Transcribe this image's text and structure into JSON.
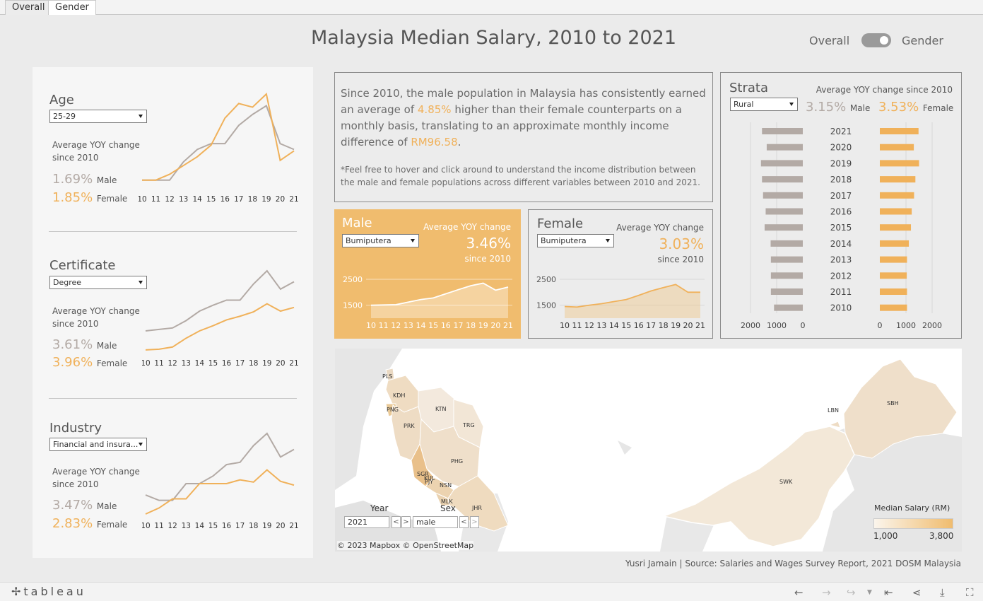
{
  "tabs": [
    {
      "label": "Overall",
      "active": false
    },
    {
      "label": "Gender",
      "active": true
    }
  ],
  "title": "Malaysia Median Salary, 2010 to 2021",
  "toggle": {
    "left": "Overall",
    "right": "Gender"
  },
  "left_sections": [
    {
      "title": "Age",
      "dropdown": "25-29",
      "yoy_label": "Average YOY change since 2010",
      "male_pct": "1.69%",
      "male_label": "Male",
      "female_pct": "1.85%",
      "female_label": "Female",
      "chart_data": {
        "type": "line",
        "x": [
          "10",
          "11",
          "12",
          "13",
          "14",
          "15",
          "16",
          "17",
          "18",
          "19",
          "20",
          "21"
        ],
        "series": [
          {
            "name": "Male",
            "color": "#b3aaa5",
            "values": [
              0.1,
              0.1,
              0.1,
              0.35,
              0.52,
              0.6,
              0.6,
              0.85,
              1.0,
              1.12,
              0.6,
              0.52
            ]
          },
          {
            "name": "Female",
            "color": "#f0b15a",
            "values": [
              0.1,
              0.1,
              0.18,
              0.3,
              0.42,
              0.58,
              0.95,
              1.15,
              1.1,
              1.28,
              0.37,
              0.5
            ]
          }
        ]
      }
    },
    {
      "title": "Certificate",
      "dropdown": "Degree",
      "yoy_label": "Average YOY change since 2010",
      "male_pct": "3.61%",
      "male_label": "Male",
      "female_pct": "3.96%",
      "female_label": "Female",
      "chart_data": {
        "type": "line",
        "x": [
          "10",
          "11",
          "12",
          "13",
          "14",
          "15",
          "16",
          "17",
          "18",
          "19",
          "20",
          "21"
        ],
        "series": [
          {
            "name": "Male",
            "color": "#b3aaa5",
            "values": [
              0.28,
              0.3,
              0.32,
              0.42,
              0.55,
              0.63,
              0.7,
              0.7,
              0.92,
              1.1,
              0.85,
              0.95
            ]
          },
          {
            "name": "Female",
            "color": "#f0b15a",
            "values": [
              0.02,
              0.03,
              0.06,
              0.18,
              0.28,
              0.35,
              0.43,
              0.48,
              0.54,
              0.65,
              0.55,
              0.6
            ]
          }
        ]
      }
    },
    {
      "title": "Industry",
      "dropdown": "Financial and insura...",
      "yoy_label": "Average YOY change since 2010",
      "male_pct": "3.47%",
      "male_label": "Male",
      "female_pct": "2.83%",
      "female_label": "Female",
      "chart_data": {
        "type": "line",
        "x": [
          "10",
          "11",
          "12",
          "13",
          "14",
          "15",
          "16",
          "17",
          "18",
          "19",
          "20",
          "21"
        ],
        "series": [
          {
            "name": "Male",
            "color": "#b3aaa5",
            "values": [
              0.25,
              0.18,
              0.18,
              0.4,
              0.4,
              0.5,
              0.65,
              0.68,
              0.9,
              1.06,
              0.75,
              0.85
            ]
          },
          {
            "name": "Female",
            "color": "#f0b15a",
            "values": [
              0.0,
              0.08,
              0.2,
              0.2,
              0.4,
              0.4,
              0.4,
              0.45,
              0.42,
              0.58,
              0.43,
              0.38
            ]
          }
        ]
      }
    }
  ],
  "summary": {
    "p1": "Since 2010, the male population in Malaysia has consistently earned an average of",
    "hl1": "4.85%",
    "p2": "higher than their female counterparts on a monthly basis, translating to an approximate monthly income difference of",
    "hl2": "RM96.58",
    "p3": ".",
    "note": "*Feel free to hover and click around to understand the income distribution between the male and female populations across different variables between 2010 and 2021."
  },
  "male_card": {
    "title": "Male",
    "dropdown": "Bumiputera",
    "yoy_label": "Average YOY change",
    "pct": "3.46%",
    "since": "since 2010",
    "yticks": [
      "2500",
      "1500"
    ],
    "chart_data": {
      "type": "area",
      "x": [
        "10",
        "11",
        "12",
        "13",
        "14",
        "15",
        "16",
        "17",
        "18",
        "19",
        "20",
        "21"
      ],
      "values": [
        1500,
        1510,
        1520,
        1620,
        1720,
        1780,
        1940,
        2100,
        2250,
        2350,
        2080,
        2200
      ],
      "ylim": [
        1000,
        2800
      ]
    }
  },
  "female_card": {
    "title": "Female",
    "dropdown": "Bumiputera",
    "yoy_label": "Average YOY change",
    "pct": "3.03%",
    "since": "since 2010",
    "yticks": [
      "2500",
      "1500"
    ],
    "chart_data": {
      "type": "area",
      "x": [
        "10",
        "11",
        "12",
        "13",
        "14",
        "15",
        "16",
        "17",
        "18",
        "19",
        "20",
        "21"
      ],
      "values": [
        1450,
        1430,
        1500,
        1560,
        1640,
        1720,
        1880,
        2050,
        2180,
        2300,
        2000,
        2000
      ],
      "ylim": [
        1000,
        2800
      ]
    }
  },
  "strata": {
    "title": "Strata",
    "dropdown": "Rural",
    "yoy_label": "Average YOY change since 2010",
    "male_pct": "3.15%",
    "male_label": "Male",
    "female_pct": "3.53%",
    "female_label": "Female",
    "chart_data": {
      "type": "bar",
      "categories": [
        "2021",
        "2020",
        "2019",
        "2018",
        "2017",
        "2016",
        "2015",
        "2014",
        "2013",
        "2012",
        "2011",
        "2010"
      ],
      "series": [
        {
          "name": "Male",
          "color": "#b3aaa5",
          "values": [
            1560,
            1380,
            1600,
            1560,
            1520,
            1420,
            1460,
            1230,
            1220,
            1220,
            1220,
            1100
          ]
        },
        {
          "name": "Female",
          "color": "#f0b15a",
          "values": [
            1480,
            1300,
            1500,
            1360,
            1310,
            1220,
            1190,
            1110,
            1040,
            1030,
            1040,
            1040
          ]
        }
      ],
      "left_ticks": [
        "2000",
        "1000",
        "0"
      ],
      "right_ticks": [
        "0",
        "1000",
        "2000"
      ]
    }
  },
  "map": {
    "states": [
      "PLS",
      "KDH",
      "PNG",
      "KTN",
      "PRK",
      "TRG",
      "PHG",
      "SGR",
      "KUL",
      "PJY",
      "NSN",
      "MLK",
      "JHR",
      "LBN",
      "SBH",
      "SWK"
    ],
    "year_label": "Year",
    "year_value": "2021",
    "sex_label": "Sex",
    "sex_value": "male",
    "legend_title": "Median Salary (RM)",
    "legend_min": "1,000",
    "legend_max": "3,800",
    "attribution": [
      "© 2023 Mapbox",
      "© OpenStreetMap"
    ]
  },
  "credit": "Yusri Jamain | Source: Salaries and Wages Survey Report, 2021 DOSM Malaysia",
  "footer": {
    "brand": "+ab|eau"
  }
}
